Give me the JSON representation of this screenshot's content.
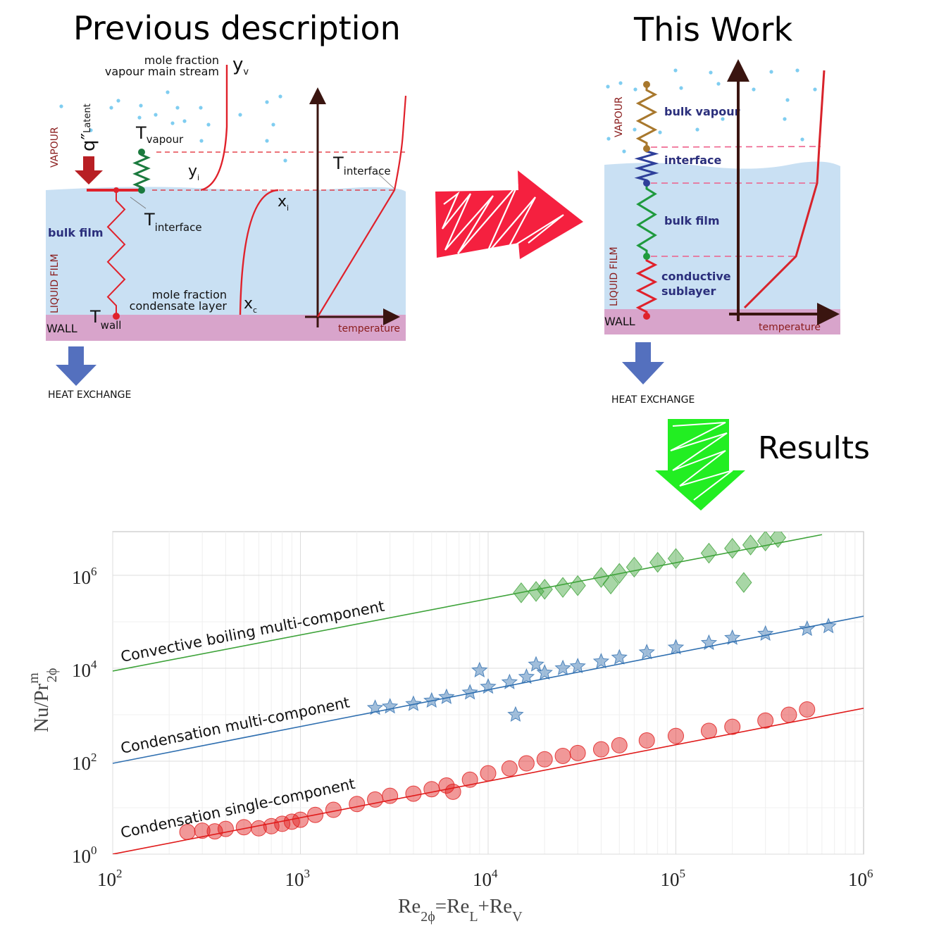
{
  "left_panel": {
    "title": "Previous description",
    "vapour_label": "VAPOUR",
    "liquid_label": "LIQUID FILM",
    "wall_label": "WALL",
    "bulk_film": "bulk film",
    "heat_flux": {
      "symbol": "q″",
      "sub": "Latent"
    },
    "t_vapour": {
      "symbol": "T",
      "sub": "vapour"
    },
    "t_interface_left": {
      "symbol": "T",
      "sub": "interface"
    },
    "t_interface_right": {
      "symbol": "T",
      "sub": "interface"
    },
    "t_wall": {
      "symbol": "T",
      "sub": "wall"
    },
    "mole_vapour": [
      "mole fraction",
      "vapour main stream"
    ],
    "mole_condensate": [
      "mole fraction",
      "condensate layer"
    ],
    "yv": {
      "symbol": "y",
      "sub": "v"
    },
    "yi": {
      "symbol": "y",
      "sub": "i"
    },
    "xi": {
      "symbol": "x",
      "sub": "i"
    },
    "xc": {
      "symbol": "x",
      "sub": "c"
    },
    "temperature_axis": "temperature",
    "heat_exchange": "HEAT EXCHANGE"
  },
  "right_panel": {
    "title": "This Work",
    "vapour_label": "VAPOUR",
    "liquid_label": "LIQUID FILM",
    "wall_label": "WALL",
    "layers": [
      "bulk vapour",
      "interface",
      "bulk film",
      "conductive",
      "sublayer"
    ],
    "temperature_axis": "temperature",
    "heat_exchange": "HEAT EXCHANGE"
  },
  "results_label": "Results",
  "colors": {
    "liquid": "#c9e0f3",
    "wall": "#d8a4cb",
    "red": "#e0212b",
    "green_spring": "#1b7a3e",
    "brown_spring": "#a8782d",
    "blue_spring": "#2e3f9a",
    "heat_arrow": "#5470be"
  },
  "chart_data": {
    "type": "scatter",
    "xscale": "log",
    "yscale": "log",
    "xlim": [
      100,
      1000000
    ],
    "ylim": [
      1,
      7500000
    ],
    "xlabel": {
      "base": "Re",
      "sub1": "2ϕ",
      "eq": "=Re",
      "sub2": "L",
      "plus": "+Re",
      "sub3": "V"
    },
    "ylabel": {
      "base": "Nu/Pr",
      "sup": "m",
      "sub": "2ϕ"
    },
    "xticks": [
      {
        "base": "10",
        "exp": "2",
        "v": 100
      },
      {
        "base": "10",
        "exp": "3",
        "v": 1000
      },
      {
        "base": "10",
        "exp": "4",
        "v": 10000
      },
      {
        "base": "10",
        "exp": "5",
        "v": 100000
      },
      {
        "base": "10",
        "exp": "6",
        "v": 1000000
      }
    ],
    "yticks": [
      {
        "base": "10",
        "exp": "0",
        "v": 1
      },
      {
        "base": "10",
        "exp": "2",
        "v": 100
      },
      {
        "base": "10",
        "exp": "4",
        "v": 10000
      },
      {
        "base": "10",
        "exp": "6",
        "v": 1000000
      }
    ],
    "grid": true,
    "series": [
      {
        "name": "Condensation single-component",
        "marker": "circle",
        "color": "#e01b1b",
        "fit": [
          [
            100,
            1
          ],
          [
            1000000,
            1380
          ]
        ],
        "points": [
          [
            250,
            3
          ],
          [
            300,
            3.2
          ],
          [
            350,
            3.1
          ],
          [
            400,
            3.5
          ],
          [
            500,
            3.8
          ],
          [
            600,
            3.6
          ],
          [
            700,
            4
          ],
          [
            800,
            4.5
          ],
          [
            900,
            5
          ],
          [
            1000,
            5.5
          ],
          [
            1200,
            7
          ],
          [
            1500,
            9
          ],
          [
            2000,
            12
          ],
          [
            2500,
            15
          ],
          [
            3000,
            18
          ],
          [
            4000,
            20
          ],
          [
            5000,
            25
          ],
          [
            6000,
            30
          ],
          [
            6500,
            22
          ],
          [
            8000,
            40
          ],
          [
            10000,
            55
          ],
          [
            13000,
            70
          ],
          [
            16000,
            90
          ],
          [
            20000,
            110
          ],
          [
            25000,
            130
          ],
          [
            30000,
            150
          ],
          [
            40000,
            180
          ],
          [
            50000,
            220
          ],
          [
            70000,
            280
          ],
          [
            100000,
            350
          ],
          [
            150000,
            450
          ],
          [
            200000,
            550
          ],
          [
            300000,
            750
          ],
          [
            400000,
            1000
          ],
          [
            500000,
            1300
          ]
        ]
      },
      {
        "name": "Condensation multi-component",
        "marker": "star",
        "color": "#2f6fb0",
        "fit": [
          [
            100,
            90
          ],
          [
            1000000,
            132000
          ]
        ],
        "points": [
          [
            2500,
            1400
          ],
          [
            3000,
            1500
          ],
          [
            4000,
            1700
          ],
          [
            5000,
            2000
          ],
          [
            6000,
            2400
          ],
          [
            8000,
            3000
          ],
          [
            9000,
            9000
          ],
          [
            10000,
            4000
          ],
          [
            13000,
            5000
          ],
          [
            14000,
            1000
          ],
          [
            16000,
            6500
          ],
          [
            18000,
            12000
          ],
          [
            20000,
            8000
          ],
          [
            25000,
            10000
          ],
          [
            30000,
            11000
          ],
          [
            40000,
            14000
          ],
          [
            50000,
            17000
          ],
          [
            70000,
            22000
          ],
          [
            100000,
            28000
          ],
          [
            150000,
            35000
          ],
          [
            200000,
            45000
          ],
          [
            300000,
            55000
          ],
          [
            500000,
            70000
          ],
          [
            650000,
            80000
          ]
        ]
      },
      {
        "name": "Convective boiling multi-component",
        "marker": "diamond",
        "color": "#3ea33a",
        "fit": [
          [
            100,
            8700
          ],
          [
            600000,
            7500000
          ]
        ],
        "points": [
          [
            15000,
            420000
          ],
          [
            18000,
            450000
          ],
          [
            20000,
            500000
          ],
          [
            25000,
            550000
          ],
          [
            30000,
            600000
          ],
          [
            40000,
            900000
          ],
          [
            45000,
            650000
          ],
          [
            50000,
            1100000
          ],
          [
            60000,
            1500000
          ],
          [
            80000,
            1900000
          ],
          [
            100000,
            2300000
          ],
          [
            150000,
            3000000
          ],
          [
            200000,
            3800000
          ],
          [
            230000,
            700000
          ],
          [
            250000,
            4500000
          ],
          [
            300000,
            5500000
          ],
          [
            350000,
            6500000
          ]
        ]
      }
    ]
  }
}
